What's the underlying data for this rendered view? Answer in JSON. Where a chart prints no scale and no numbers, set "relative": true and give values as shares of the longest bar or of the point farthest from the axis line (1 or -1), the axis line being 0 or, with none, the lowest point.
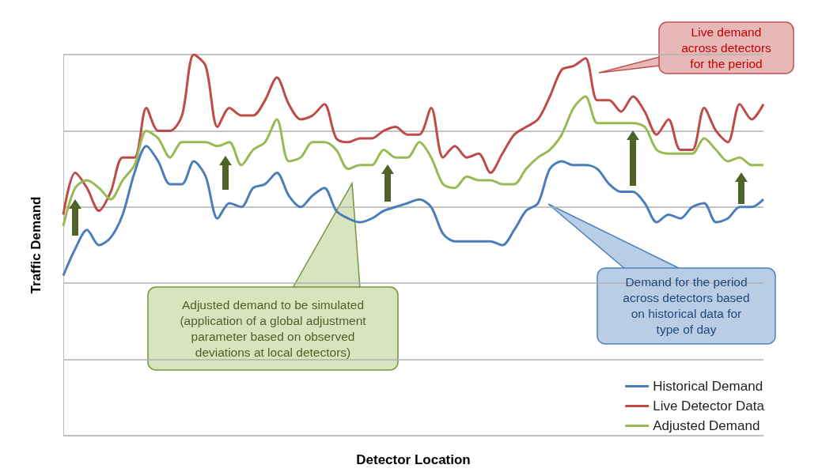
{
  "chart_data": {
    "type": "line",
    "relative": true,
    "xlabel": "Detector Location",
    "ylabel": "Traffic Demand",
    "grid": "y",
    "legend": "bottom right",
    "categories": [
      null,
      null,
      null,
      null,
      null,
      null,
      null,
      null,
      null,
      null,
      null,
      null,
      null,
      null,
      null,
      null,
      null,
      null,
      null,
      null,
      null,
      null,
      null,
      null,
      null,
      null,
      null,
      null,
      null,
      null,
      null,
      null,
      null,
      null,
      null,
      null,
      null,
      null,
      null,
      null,
      null,
      null,
      null,
      null,
      null,
      null,
      null,
      null,
      null,
      null,
      null,
      null,
      null,
      null,
      null,
      null,
      null,
      null,
      null,
      null
    ],
    "series": [
      {
        "name": "Historical Demand",
        "color": "#4a7ebb",
        "values": [
          0.42,
          0.49,
          0.54,
          0.5,
          0.52,
          0.58,
          0.69,
          0.76,
          0.72,
          0.66,
          0.66,
          0.72,
          0.68,
          0.57,
          0.61,
          0.6,
          0.65,
          0.66,
          0.69,
          0.63,
          0.6,
          0.63,
          0.65,
          0.59,
          0.57,
          0.56,
          0.57,
          0.59,
          0.6,
          0.61,
          0.62,
          0.6,
          0.53,
          0.51,
          0.51,
          0.51,
          0.51,
          0.5,
          0.54,
          0.59,
          0.61,
          0.7,
          0.72,
          0.71,
          0.71,
          0.7,
          0.66,
          0.64,
          0.64,
          0.61,
          0.56,
          0.58,
          0.57,
          0.6,
          0.61,
          0.56,
          0.57,
          0.6,
          0.6,
          0.62
        ]
      },
      {
        "name": "Live Detector Data",
        "color": "#be4b48",
        "values": [
          0.58,
          0.69,
          0.65,
          0.59,
          0.64,
          0.73,
          0.73,
          0.86,
          0.8,
          0.8,
          0.84,
          1.0,
          0.97,
          0.81,
          0.86,
          0.84,
          0.84,
          0.88,
          0.94,
          0.87,
          0.83,
          0.84,
          0.87,
          0.78,
          0.77,
          0.78,
          0.78,
          0.8,
          0.81,
          0.79,
          0.79,
          0.86,
          0.73,
          0.76,
          0.73,
          0.74,
          0.69,
          0.74,
          0.79,
          0.81,
          0.83,
          0.89,
          0.96,
          0.97,
          0.99,
          0.88,
          0.88,
          0.85,
          0.89,
          0.85,
          0.79,
          0.83,
          0.75,
          0.75,
          0.86,
          0.8,
          0.77,
          0.87,
          0.83,
          0.87
        ]
      },
      {
        "name": "Adjusted Demand",
        "color": "#98b954",
        "values": [
          0.55,
          0.65,
          0.67,
          0.65,
          0.62,
          0.67,
          0.71,
          0.8,
          0.78,
          0.73,
          0.77,
          0.77,
          0.77,
          0.76,
          0.77,
          0.71,
          0.75,
          0.77,
          0.83,
          0.72,
          0.73,
          0.77,
          0.77,
          0.75,
          0.7,
          0.71,
          0.71,
          0.75,
          0.73,
          0.73,
          0.77,
          0.73,
          0.66,
          0.65,
          0.68,
          0.67,
          0.67,
          0.66,
          0.66,
          0.7,
          0.73,
          0.75,
          0.79,
          0.86,
          0.89,
          0.82,
          0.82,
          0.82,
          0.82,
          0.81,
          0.75,
          0.74,
          0.74,
          0.74,
          0.78,
          0.75,
          0.72,
          0.73,
          0.71,
          0.71
        ]
      }
    ],
    "annotations": [
      "Live demand across detectors for the period",
      "Adjusted demand to be simulated (application of a global adjustment parameter based on observed deviations at local detectors)",
      "Demand for the period across detectors based on historical data for type of day"
    ]
  }
}
